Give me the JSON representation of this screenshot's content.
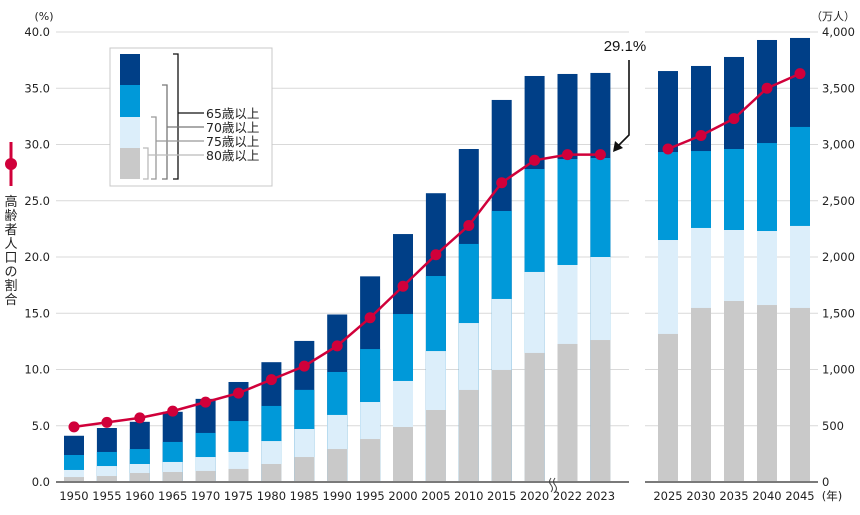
{
  "chart_data": {
    "type": "bar",
    "subtype": "stacked-bar-with-line",
    "title": "",
    "left_axis": {
      "unit_label": "(%)",
      "label": "高齢者人口の割合",
      "ylim": [
        0,
        40
      ],
      "ticks": [
        "0.0",
        "5.0",
        "10.0",
        "15.0",
        "20.0",
        "25.0",
        "30.0",
        "35.0",
        "40.0"
      ]
    },
    "right_axis": {
      "unit_label": "（万人）",
      "ylim": [
        0,
        4000
      ],
      "ticks": [
        "0",
        "500",
        "1,000",
        "1,500",
        "2,000",
        "2,500",
        "3,000",
        "3,500",
        "4,000"
      ]
    },
    "x_unit_label": "(年)",
    "grid": true,
    "legend_position": "top-left",
    "axis_break_after": "2020",
    "categories": [
      "1950",
      "1955",
      "1960",
      "1965",
      "1970",
      "1975",
      "1980",
      "1985",
      "1990",
      "1995",
      "2000",
      "2005",
      "2010",
      "2015",
      "2020",
      "2022",
      "2023",
      "2025",
      "2030",
      "2035",
      "2040",
      "2045"
    ],
    "series": [
      {
        "name": "65歳以上",
        "axis": "right",
        "color": "#003f87",
        "values": [
          411,
          480,
          535,
          624,
          739,
          889,
          1065,
          1254,
          1489,
          1828,
          2204,
          2567,
          2960,
          3396,
          3609,
          3627,
          3636,
          3653,
          3698,
          3778,
          3929,
          3947
        ]
      },
      {
        "name": "70歳以上",
        "axis": "right",
        "color": "#0099d9",
        "values": [
          240,
          267,
          293,
          356,
          436,
          542,
          676,
          819,
          978,
          1182,
          1493,
          1831,
          2116,
          2409,
          2782,
          2871,
          2880,
          2933,
          2942,
          2960,
          3013,
          3156
        ]
      },
      {
        "name": "75歳以上",
        "axis": "right",
        "color": "#dceefa",
        "values": [
          107,
          142,
          160,
          178,
          222,
          267,
          364,
          471,
          596,
          711,
          898,
          1164,
          1413,
          1627,
          1867,
          1929,
          2000,
          2151,
          2258,
          2240,
          2231,
          2276
        ]
      },
      {
        "name": "80歳以上",
        "axis": "right",
        "color": "#c9c9c9",
        "values": [
          44,
          53,
          80,
          89,
          98,
          116,
          160,
          222,
          293,
          382,
          489,
          640,
          818,
          996,
          1147,
          1227,
          1262,
          1316,
          1547,
          1609,
          1573,
          1547
        ]
      },
      {
        "name": "高齢者人口の割合",
        "type": "line",
        "axis": "left",
        "color": "#d0003a",
        "values": [
          4.9,
          5.3,
          5.7,
          6.3,
          7.1,
          7.9,
          9.1,
          10.3,
          12.1,
          14.6,
          17.4,
          20.2,
          22.8,
          26.6,
          28.6,
          29.1,
          29.1,
          29.6,
          30.8,
          32.3,
          35.0,
          36.3
        ]
      }
    ],
    "legend": [
      "65歳以上",
      "70歳以上",
      "75歳以上",
      "80歳以上"
    ],
    "annotations": [
      {
        "text": "29.1%",
        "target": "2023"
      }
    ]
  }
}
